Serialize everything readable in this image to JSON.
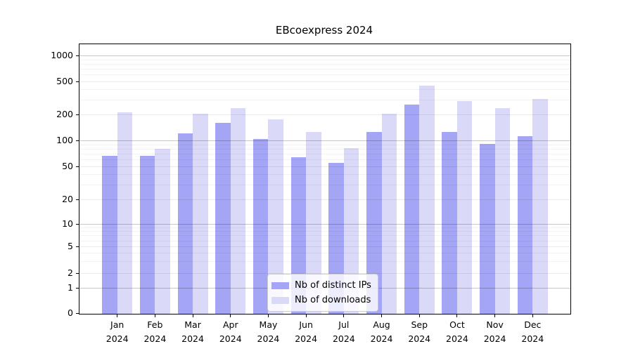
{
  "title": "EBcoexpress 2024",
  "colors": {
    "ips_bar": "#a5a5f5",
    "downloads_bar": "#dadaf8",
    "grid_major": "rgba(0,0,0,0.22)",
    "grid_labeled_minor": "rgba(0,0,0,0.08)",
    "grid_minor": "rgba(0,0,0,0.05)",
    "spine": "#000000"
  },
  "legend": {
    "items": [
      {
        "label": "Nb of distinct IPs",
        "color_key": "ips_bar"
      },
      {
        "label": "Nb of downloads",
        "color_key": "downloads_bar"
      }
    ]
  },
  "y_axis": {
    "tick_labels": [
      "0",
      "1",
      "2",
      "5",
      "10",
      "20",
      "50",
      "100",
      "200",
      "500",
      "1000"
    ]
  },
  "x_axis": {
    "months": [
      "Jan",
      "Feb",
      "Mar",
      "Apr",
      "May",
      "Jun",
      "Jul",
      "Aug",
      "Sep",
      "Oct",
      "Nov",
      "Dec"
    ],
    "year": "2024"
  },
  "chart_data": {
    "type": "bar",
    "title": "EBcoexpress 2024",
    "categories": [
      "Jan 2024",
      "Feb 2024",
      "Mar 2024",
      "Apr 2024",
      "May 2024",
      "Jun 2024",
      "Jul 2024",
      "Aug 2024",
      "Sep 2024",
      "Oct 2024",
      "Nov 2024",
      "Dec 2024"
    ],
    "series": [
      {
        "name": "Nb of distinct IPs",
        "values": [
          68,
          68,
          123,
          163,
          105,
          65,
          56,
          128,
          266,
          127,
          92,
          113
        ]
      },
      {
        "name": "Nb of downloads",
        "values": [
          215,
          82,
          206,
          242,
          178,
          127,
          83,
          209,
          452,
          297,
          245,
          315
        ]
      }
    ],
    "y_ticks": [
      0,
      1,
      2,
      5,
      10,
      20,
      50,
      100,
      200,
      500,
      1000
    ],
    "yscale": "log-like with linear 0-1 segment",
    "ylim": [
      0,
      1300
    ],
    "grid": "horizontal",
    "legend_position": "lower center"
  }
}
